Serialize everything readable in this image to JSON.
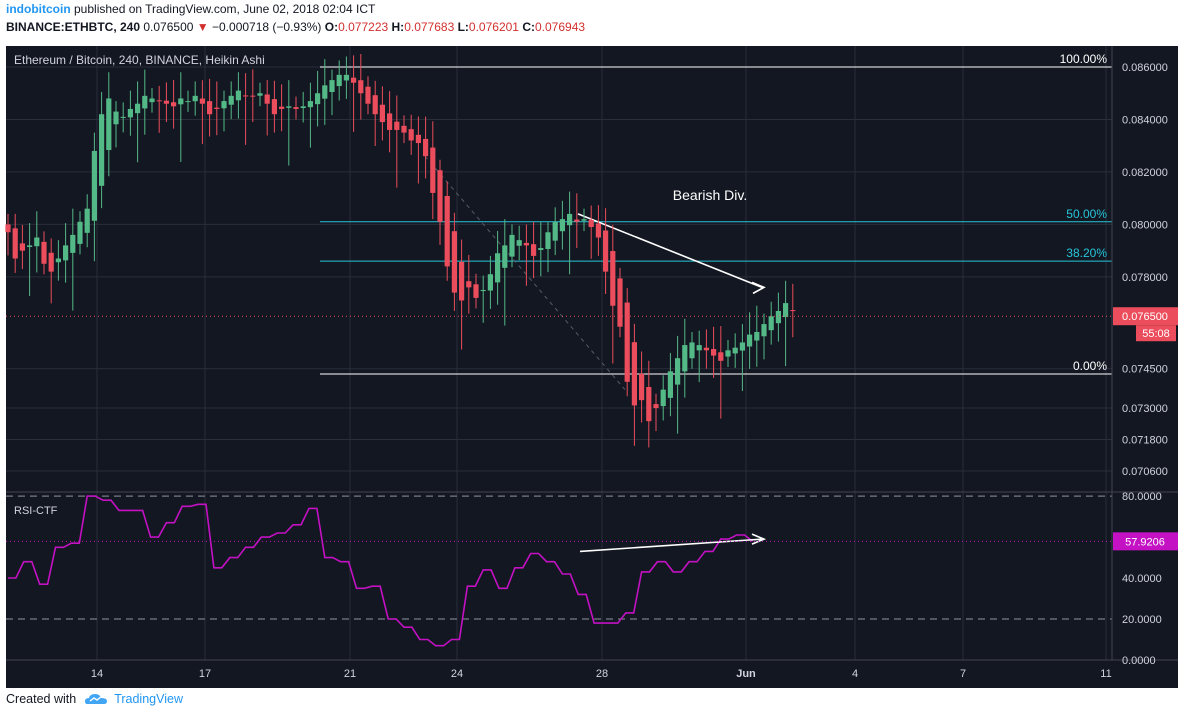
{
  "header": {
    "user": "indobitcoin",
    "published_text": "published on TradingView.com, June 02, 2018 02:04 ICT",
    "symbol": "BINANCE:ETHBTC, 240",
    "last": "0.076500",
    "arrow": "▼",
    "change": "−0.000718 (−0.93%)",
    "o_label": "O:",
    "o_value": "0.077223",
    "h_label": "H:",
    "h_value": "0.077683",
    "l_label": "L:",
    "l_value": "0.076201",
    "c_label": "C:",
    "c_value": "0.076943"
  },
  "footer": {
    "created_with": "Created with",
    "brand": "TradingView",
    "logo_icon": "tradingview-cloud-icon"
  },
  "colors": {
    "background": "#131722",
    "up": "#53b987",
    "down": "#eb4d5c",
    "fib": "#26c6da",
    "rsi": "#c311c3",
    "price_tag": "#eb4d5c"
  },
  "chart_data": [
    {
      "type": "candlestick",
      "title": "Ethereum / Bitcoin, 240, BINANCE, Heikin Ashi",
      "x_tick_labels": [
        "14",
        "17",
        "21",
        "24",
        "28",
        "Jun",
        "4",
        "7",
        "11"
      ],
      "y_tick_labels": [
        "0.086000",
        "0.084000",
        "0.082000",
        "0.080000",
        "0.078000",
        "0.074500",
        "0.073000",
        "0.071800",
        "0.070600"
      ],
      "ylim": [
        0.0698,
        0.0868
      ],
      "current_price": "0.076500",
      "countdown": "55:08",
      "annotations": {
        "text": "Bearish Div.",
        "fib_levels": [
          {
            "label": "100.00%",
            "value": 0.086
          },
          {
            "label": "50.00%",
            "value": 0.0801
          },
          {
            "label": "38.20%",
            "value": 0.0786
          },
          {
            "label": "0.00%",
            "value": 0.0743
          }
        ]
      },
      "closes": [
        0.0797,
        0.0787,
        0.079,
        0.0792,
        0.0795,
        0.0785,
        0.0782,
        0.0787,
        0.0792,
        0.0796,
        0.0801,
        0.0806,
        0.0828,
        0.0842,
        0.0848,
        0.0843,
        0.0841,
        0.0844,
        0.0846,
        0.0849,
        0.0848,
        0.0847,
        0.0846,
        0.0845,
        0.0848,
        0.0847,
        0.0849,
        0.0846,
        0.0842,
        0.0844,
        0.0847,
        0.0849,
        0.0851,
        0.0849,
        0.0849,
        0.085,
        0.0846,
        0.0842,
        0.0844,
        0.0845,
        0.0844,
        0.0845,
        0.0847,
        0.085,
        0.0853,
        0.0855,
        0.0857,
        0.0857,
        0.0854,
        0.085,
        0.0846,
        0.0842,
        0.0839,
        0.0836,
        0.0836,
        0.0835,
        0.0832,
        0.0831,
        0.0826,
        0.0812,
        0.0801,
        0.0784,
        0.0774,
        0.0771,
        0.0776,
        0.0772,
        0.0775,
        0.0781,
        0.0789,
        0.0792,
        0.0796,
        0.0794,
        0.0792,
        0.0788,
        0.0791,
        0.0797,
        0.0801,
        0.0802,
        0.0804,
        0.0801,
        0.0802,
        0.0799,
        0.0795,
        0.0782,
        0.0769,
        0.0761,
        0.074,
        0.0731,
        0.0733,
        0.0725,
        0.073,
        0.0737,
        0.0744,
        0.0749,
        0.0754,
        0.0755,
        0.0754,
        0.0752,
        0.075,
        0.0748,
        0.0752,
        0.0753,
        0.0755,
        0.0758,
        0.0759,
        0.0762,
        0.0765,
        0.0767,
        0.077,
        0.0767
      ]
    },
    {
      "type": "line",
      "title": "RSI-CTF",
      "y_tick_labels": [
        "80.0000",
        "40.0000",
        "20.0000",
        "0.0000"
      ],
      "ylim": [
        0,
        82
      ],
      "bands": [
        80,
        20
      ],
      "current_value": "57.9206",
      "values": [
        40,
        40,
        48,
        48,
        37,
        37,
        55,
        55,
        57,
        57,
        80,
        80,
        78,
        78,
        73,
        73,
        73,
        73,
        60,
        60,
        67,
        67,
        75,
        75,
        76,
        76,
        45,
        45,
        50,
        50,
        55,
        55,
        60,
        60,
        62,
        62,
        66,
        66,
        74,
        74,
        50,
        50,
        48,
        48,
        35,
        35,
        36,
        36,
        20,
        20,
        16,
        16,
        10,
        10,
        7,
        7,
        10,
        10,
        36,
        36,
        44,
        44,
        35,
        35,
        45,
        45,
        52,
        52,
        48,
        48,
        42,
        42,
        32,
        32,
        18,
        18,
        18,
        18,
        23,
        23,
        43,
        43,
        48,
        48,
        43,
        43,
        48,
        48,
        53,
        53,
        59,
        59,
        61,
        61,
        58
      ],
      "divergence_annotation": "arrow"
    }
  ]
}
